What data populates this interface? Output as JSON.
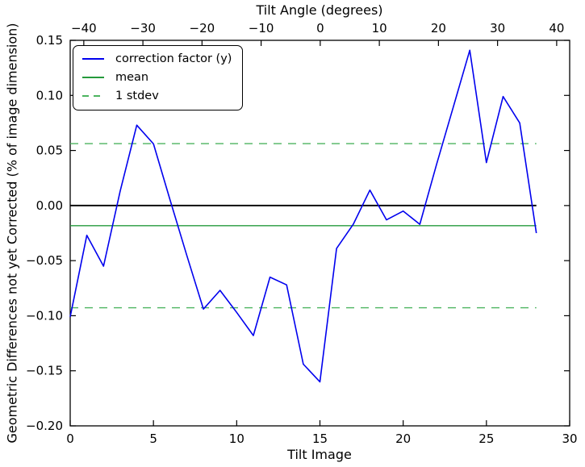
{
  "figure": {
    "top_axis_label": "Tilt Angle (degrees)",
    "xlabel": "Tilt Image",
    "ylabel": "Geometric Differences not yet Corrected (% of image dimension)",
    "background": "#ffffff",
    "spine_color": "#000000"
  },
  "legend": {
    "items": [
      {
        "label": "correction factor (y)",
        "color": "#0000ee",
        "style": "solid"
      },
      {
        "label": "mean",
        "color": "#259a3c",
        "style": "solid"
      },
      {
        "label": "1 stdev",
        "color": "#4cb45f",
        "style": "dashed"
      }
    ]
  },
  "chart_data": {
    "type": "line",
    "title": "",
    "xlabel": "Tilt Image",
    "ylabel": "Geometric Differences not yet Corrected (% of image dimension)",
    "top_xlabel": "Tilt Angle (degrees)",
    "xlim": [
      0,
      30
    ],
    "ylim": [
      -0.2,
      0.15
    ],
    "top_xlim": [
      -42.3,
      42.2
    ],
    "x_ticks": [
      0,
      5,
      10,
      15,
      20,
      25,
      30
    ],
    "x_tick_labels": [
      "0",
      "5",
      "10",
      "15",
      "20",
      "25",
      "30"
    ],
    "y_ticks": [
      0.15,
      0.1,
      0.05,
      0.0,
      -0.05,
      -0.1,
      -0.15,
      -0.2
    ],
    "y_tick_labels": [
      "0.15",
      "0.10",
      "0.05",
      "0.00",
      "−0.05",
      "−0.10",
      "−0.15",
      "−0.20"
    ],
    "top_ticks": [
      -40,
      -30,
      -20,
      -10,
      0,
      10,
      20,
      30,
      40
    ],
    "top_tick_labels": [
      "−40",
      "−30",
      "−20",
      "−10",
      "0",
      "10",
      "20",
      "30",
      "40"
    ],
    "grid": false,
    "legend_position": "upper left",
    "hline_x_range": [
      0,
      28
    ],
    "mean": -0.0183,
    "stdev": 0.0745,
    "zero_line": {
      "y": 0.0,
      "color": "#000000"
    },
    "series": [
      {
        "name": "correction factor (y)",
        "color": "#0000ee",
        "style": "solid",
        "x": [
          0,
          1,
          2,
          3,
          4,
          5,
          6,
          7,
          8,
          9,
          10,
          11,
          12,
          13,
          14,
          15,
          16,
          17,
          18,
          19,
          20,
          21,
          22,
          23,
          24,
          25,
          26,
          27,
          28
        ],
        "y": [
          -0.101,
          -0.027,
          -0.055,
          0.013,
          0.073,
          0.056,
          0.005,
          -0.045,
          -0.094,
          -0.077,
          -0.097,
          -0.118,
          -0.065,
          -0.072,
          -0.144,
          -0.16,
          -0.039,
          -0.017,
          0.014,
          -0.013,
          -0.005,
          -0.017,
          0.037,
          0.089,
          0.141,
          0.039,
          0.099,
          0.075,
          -0.025
        ]
      },
      {
        "name": "mean",
        "color": "#259a3c",
        "style": "solid",
        "y_const": -0.0183
      },
      {
        "name": "+1 stdev",
        "color": "#4cb45f",
        "style": "dashed",
        "y_const": 0.0562
      },
      {
        "name": "-1 stdev",
        "color": "#4cb45f",
        "style": "dashed",
        "y_const": -0.0928
      }
    ]
  }
}
